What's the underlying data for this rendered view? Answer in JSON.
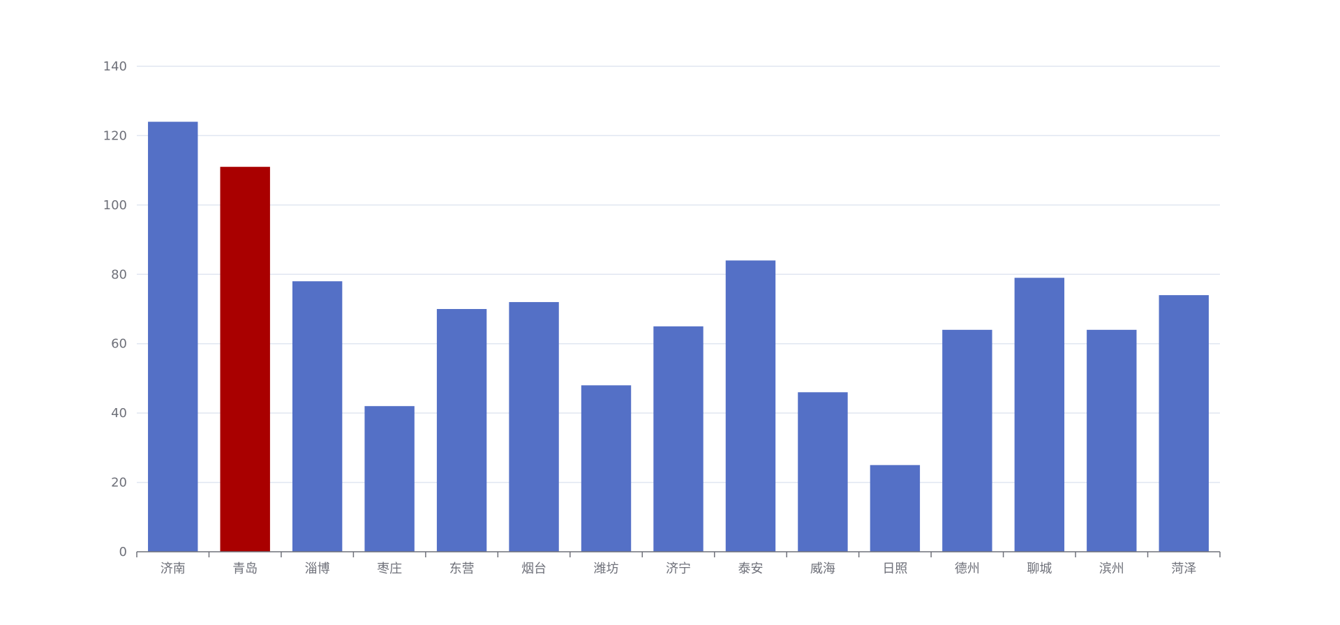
{
  "chart_data": {
    "type": "bar",
    "title": "",
    "xlabel": "",
    "ylabel": "",
    "categories": [
      "济南",
      "青岛",
      "淄博",
      "枣庄",
      "东营",
      "烟台",
      "潍坊",
      "济宁",
      "泰安",
      "威海",
      "日照",
      "德州",
      "聊城",
      "滨州",
      "菏泽"
    ],
    "values": [
      124,
      111,
      78,
      42,
      70,
      72,
      48,
      65,
      84,
      46,
      25,
      64,
      79,
      64,
      74
    ],
    "ylim": [
      0,
      140
    ],
    "yticks": [
      0,
      20,
      40,
      60,
      80,
      100,
      120,
      140
    ],
    "grid": true,
    "legend": "none",
    "colors": {
      "default_bar": "#5470c6",
      "highlight_bar": "#a90000",
      "grid": "#e0e6f1",
      "axis": "#6e7079",
      "text": "#6e7079"
    },
    "highlight_category": "青岛"
  }
}
